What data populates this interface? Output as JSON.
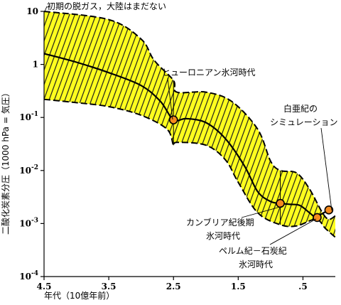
{
  "chart_data": {
    "type": "area",
    "xlabel": "年代（10億年前）",
    "ylabel": "二酸化炭素分圧（1000 hPa = 気圧）",
    "x_ticks": [
      "4.5",
      "3.5",
      "2.5",
      "1.5",
      ".5"
    ],
    "x_tick_values": [
      4.5,
      3.5,
      2.5,
      1.5,
      0.5
    ],
    "xlim": [
      4.5,
      0
    ],
    "y_scale": "log",
    "ylim": [
      0.0001,
      10
    ],
    "y_tick_values": [
      10,
      1,
      0.1,
      0.01,
      0.001,
      0.0001
    ],
    "y_ticks": [
      {
        "base": "10",
        "exp": ""
      },
      {
        "base": "1",
        "exp": ""
      },
      {
        "base": "10",
        "exp": "-1"
      },
      {
        "base": "10",
        "exp": "-2"
      },
      {
        "base": "10",
        "exp": "-3"
      },
      {
        "base": "10",
        "exp": "-4"
      }
    ],
    "grid": false,
    "band": {
      "upper": [
        {
          "x": 4.5,
          "y": 10
        },
        {
          "x": 3.5,
          "y": 7
        },
        {
          "x": 3.0,
          "y": 3
        },
        {
          "x": 2.8,
          "y": 1.2
        },
        {
          "x": 2.5,
          "y": 0.5
        },
        {
          "x": 2.45,
          "y": 0.3
        },
        {
          "x": 2.0,
          "y": 0.3
        },
        {
          "x": 1.6,
          "y": 0.2
        },
        {
          "x": 1.2,
          "y": 0.06
        },
        {
          "x": 1.0,
          "y": 0.015
        },
        {
          "x": 0.85,
          "y": 0.01
        },
        {
          "x": 0.6,
          "y": 0.009
        },
        {
          "x": 0.4,
          "y": 0.0045
        },
        {
          "x": 0.2,
          "y": 0.0016
        },
        {
          "x": 0.1,
          "y": 0.0012
        },
        {
          "x": 0.0,
          "y": 0.0014
        }
      ],
      "lower": [
        {
          "x": 4.5,
          "y": 0.22
        },
        {
          "x": 4.0,
          "y": 0.19
        },
        {
          "x": 3.5,
          "y": 0.16
        },
        {
          "x": 3.0,
          "y": 0.11
        },
        {
          "x": 2.6,
          "y": 0.06
        },
        {
          "x": 2.5,
          "y": 0.03
        },
        {
          "x": 2.45,
          "y": 0.034
        },
        {
          "x": 2.0,
          "y": 0.03
        },
        {
          "x": 1.7,
          "y": 0.016
        },
        {
          "x": 1.5,
          "y": 0.006
        },
        {
          "x": 1.2,
          "y": 0.0016
        },
        {
          "x": 0.85,
          "y": 0.00095
        },
        {
          "x": 0.6,
          "y": 0.0009
        },
        {
          "x": 0.3,
          "y": 0.0012
        },
        {
          "x": 0.15,
          "y": 0.0008
        },
        {
          "x": 0.0,
          "y": 0.00055
        }
      ]
    },
    "line": [
      {
        "x": 4.5,
        "y": 1.6
      },
      {
        "x": 4.0,
        "y": 1.1
      },
      {
        "x": 3.5,
        "y": 0.7
      },
      {
        "x": 3.0,
        "y": 0.4
      },
      {
        "x": 2.7,
        "y": 0.2
      },
      {
        "x": 2.5,
        "y": 0.09
      },
      {
        "x": 2.3,
        "y": 0.095
      },
      {
        "x": 2.0,
        "y": 0.08
      },
      {
        "x": 1.7,
        "y": 0.04
      },
      {
        "x": 1.4,
        "y": 0.012
      },
      {
        "x": 1.2,
        "y": 0.004
      },
      {
        "x": 1.0,
        "y": 0.0026
      },
      {
        "x": 0.85,
        "y": 0.0024
      },
      {
        "x": 0.7,
        "y": 0.0023
      },
      {
        "x": 0.55,
        "y": 0.0022
      },
      {
        "x": 0.4,
        "y": 0.0016
      },
      {
        "x": 0.3,
        "y": 0.0013
      },
      {
        "x": 0.22,
        "y": 0.0015
      },
      {
        "x": 0.1,
        "y": 0.0018
      },
      {
        "x": 0.05,
        "y": 0.002
      }
    ],
    "points": [
      {
        "x": 2.5,
        "y": 0.09
      },
      {
        "x": 0.85,
        "y": 0.0024
      },
      {
        "x": 0.28,
        "y": 0.0013
      },
      {
        "x": 0.1,
        "y": 0.0018
      }
    ],
    "drop_lines": [
      {
        "x": 2.5,
        "y1": 0.5,
        "y2": 0.03
      },
      {
        "x": 0.85,
        "y1": 0.01,
        "y2": 0.00095
      }
    ],
    "annotations": [
      {
        "text": "初期の脱ガス，大陸はまだない"
      },
      {
        "text": "ヒューロニアン氷河時代"
      },
      {
        "text": "白亜紀の"
      },
      {
        "text": "シミュレーション"
      },
      {
        "text": "カンブリア紀後期"
      },
      {
        "text": "氷河時代"
      },
      {
        "text": "ペルム紀－石炭紀"
      },
      {
        "text": "氷河時代"
      }
    ]
  }
}
